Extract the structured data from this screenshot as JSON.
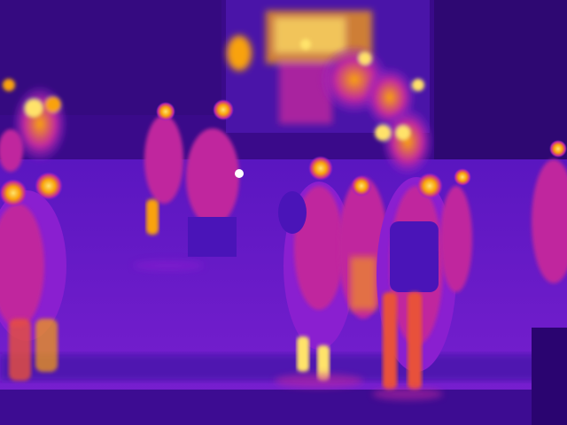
{
  "scene": {
    "kind": "thermal-camera-frame",
    "palette": [
      "#2a0470",
      "#4a14b8",
      "#8a1fd0",
      "#c0289e",
      "#e8513a",
      "#f9a20d",
      "#ffe36a",
      "#ffffff"
    ],
    "subjects": [
      "doorway-heat-glow",
      "background-crowd-left",
      "background-crowd-right",
      "pedestrian-left-edge",
      "pedestrian-center-left-walking",
      "pedestrian-center-with-bag",
      "pedestrian-center-right",
      "pedestrian-right-with-backpack",
      "pedestrian-far-right",
      "floor-reflections"
    ]
  }
}
